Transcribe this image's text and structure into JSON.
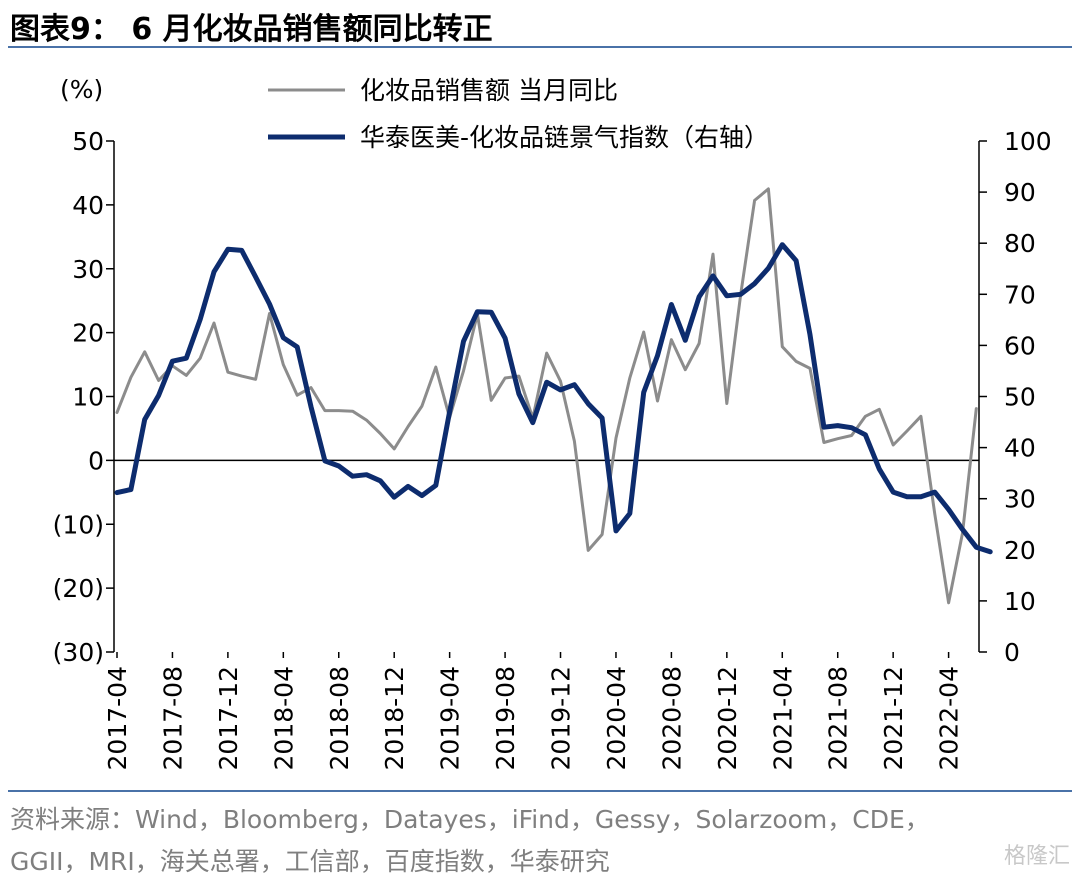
{
  "header": {
    "title": "图表9：  6 月化妆品销售额同比转正"
  },
  "footer": {
    "source_line1": "资料来源：Wind，Bloomberg，Datayes，iFind，Gessy，Solarzoom，CDE，",
    "source_line2": "GGII，MRI，海关总署，工信部，百度指数，华泰研究",
    "watermark": "格隆汇"
  },
  "colors": {
    "accent_rule": "#4a72a8",
    "series_gray": "#8c8c8c",
    "series_navy": "#0d2c6e"
  },
  "chart_data": {
    "type": "line",
    "y_left_unit": "(%)",
    "ylim_left": [
      -30,
      50
    ],
    "ylim_right": [
      0,
      100
    ],
    "y_left_ticks": [
      50,
      40,
      30,
      20,
      10,
      0,
      -10,
      -20,
      -30
    ],
    "y_left_tick_labels": [
      "50",
      "40",
      "30",
      "20",
      "10",
      "0",
      "(10)",
      "(20)",
      "(30)"
    ],
    "y_right_ticks": [
      100,
      90,
      80,
      70,
      60,
      50,
      40,
      30,
      20,
      10,
      0
    ],
    "y_right_tick_labels": [
      "100",
      "90",
      "80",
      "70",
      "60",
      "50",
      "40",
      "30",
      "20",
      "10",
      "0"
    ],
    "x_ticks": [
      0,
      4,
      8,
      12,
      16,
      20,
      24,
      28,
      32,
      36,
      40,
      44,
      48,
      52,
      56,
      60
    ],
    "x_tick_labels": [
      "2017-04",
      "2017-08",
      "2017-12",
      "2018-04",
      "2018-08",
      "2018-12",
      "2019-04",
      "2019-08",
      "2019-12",
      "2020-04",
      "2020-08",
      "2020-12",
      "2021-04",
      "2021-08",
      "2021-12",
      "2022-04"
    ],
    "legend_placement": "top-center",
    "series": [
      {
        "name": "化妆品销售额 当月同比",
        "axis": "left",
        "color": "#8c8c8c",
        "x": [
          0,
          1,
          2,
          3,
          4,
          5,
          6,
          7,
          8,
          9,
          10,
          11,
          12,
          13,
          14,
          15,
          16,
          17,
          18,
          19,
          20,
          21,
          22,
          23,
          24,
          25,
          26,
          27,
          28,
          29,
          30,
          31,
          32,
          33,
          34,
          35,
          36,
          37,
          38,
          39,
          40,
          41,
          42,
          43,
          44,
          45,
          46,
          47,
          48,
          49,
          50,
          51,
          52,
          53,
          54,
          55,
          56,
          57,
          58,
          59,
          60,
          61,
          62,
          63
        ],
        "values": [
          7.5,
          13.0,
          17.0,
          12.5,
          14.8,
          13.3,
          16.0,
          21.5,
          13.8,
          13.2,
          12.7,
          23.0,
          15.0,
          10.2,
          11.4,
          7.8,
          7.8,
          7.7,
          6.3,
          4.2,
          1.8,
          5.3,
          8.5,
          14.6,
          6.7,
          14.0,
          22.9,
          9.4,
          12.9,
          13.2,
          6.6,
          16.8,
          12.4,
          3.0,
          -14.1,
          -11.6,
          3.5,
          12.9,
          20.1,
          9.3,
          18.9,
          14.2,
          18.3,
          32.3,
          8.9,
          26.0,
          40.7,
          42.5,
          17.8,
          15.5,
          14.4,
          2.8,
          3.4,
          3.9,
          6.9,
          8.0,
          2.4,
          4.6,
          6.9,
          -8.3,
          -22.3,
          -11.4,
          8.1,
          null
        ]
      },
      {
        "name": "华泰医美-化妆品链景气指数（右轴）",
        "axis": "right",
        "color": "#0d2c6e",
        "x": [
          0,
          1,
          2,
          3,
          4,
          5,
          6,
          7,
          8,
          9,
          10,
          11,
          12,
          13,
          14,
          15,
          16,
          17,
          18,
          19,
          20,
          21,
          22,
          23,
          24,
          25,
          26,
          27,
          28,
          29,
          30,
          31,
          32,
          33,
          34,
          35,
          36,
          37,
          38,
          39,
          40,
          41,
          42,
          43,
          44,
          45,
          46,
          47,
          48,
          49,
          50,
          51,
          52,
          53,
          54,
          55,
          56,
          57,
          58,
          59,
          60,
          61,
          62,
          63
        ],
        "values": [
          31.2,
          31.8,
          45.5,
          50.2,
          56.9,
          57.5,
          65.1,
          74.4,
          78.8,
          78.6,
          73.4,
          68.1,
          61.5,
          59.7,
          48.0,
          37.4,
          36.4,
          34.4,
          34.7,
          33.5,
          30.3,
          32.4,
          30.6,
          32.6,
          47.0,
          60.8,
          66.6,
          66.5,
          61.4,
          50.5,
          44.9,
          52.8,
          51.3,
          52.3,
          48.6,
          45.8,
          23.7,
          27.1,
          50.8,
          58.0,
          68.0,
          61.0,
          69.5,
          73.6,
          69.7,
          70.0,
          72.1,
          75.1,
          79.7,
          76.6,
          62.1,
          44.0,
          44.3,
          43.9,
          42.5,
          35.8,
          31.3,
          30.4,
          30.4,
          31.3,
          27.9,
          24.0,
          20.5,
          19.6
        ]
      }
    ]
  }
}
